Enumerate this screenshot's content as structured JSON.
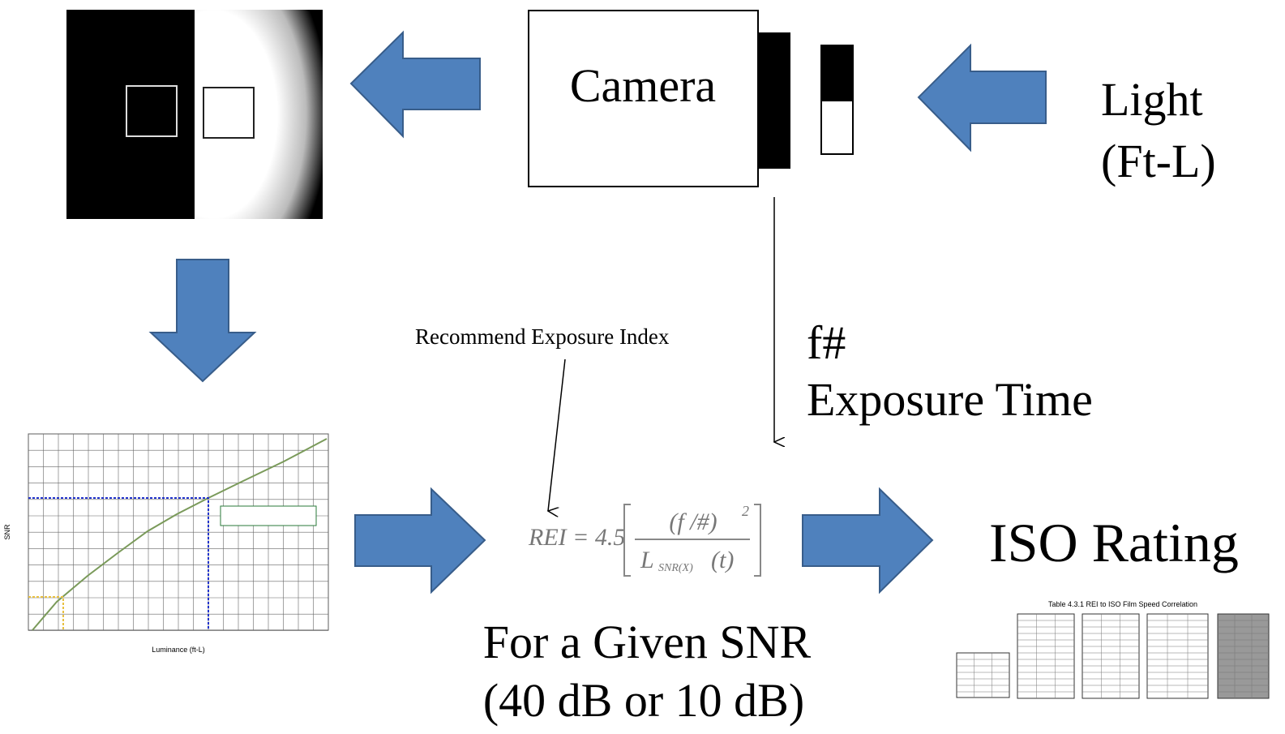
{
  "camera": {
    "label": "Camera"
  },
  "light": {
    "line1": "Light",
    "line2": "(Ft-L)"
  },
  "annotation": {
    "label": "Recommend Exposure Index"
  },
  "settings": {
    "line1": "f#",
    "line2": "Exposure Time"
  },
  "formula": {
    "lhs": "REI = 4.5",
    "numerator": "(f /#)",
    "denominator_l": "L",
    "denominator_sub": "SNR(X)",
    "denominator_t": "(t)",
    "exponent": "2"
  },
  "condition": {
    "line1": "For a Given SNR",
    "line2": "(40 dB or 10 dB)"
  },
  "result": {
    "label": "ISO Rating"
  },
  "thumbnail_chart": {
    "x_label": "Luminance (ft-L)",
    "y_label": "SNR"
  },
  "thumbnail_table": {
    "title": "Table 4.3.1  REI to ISO Film Speed Correlation"
  }
}
